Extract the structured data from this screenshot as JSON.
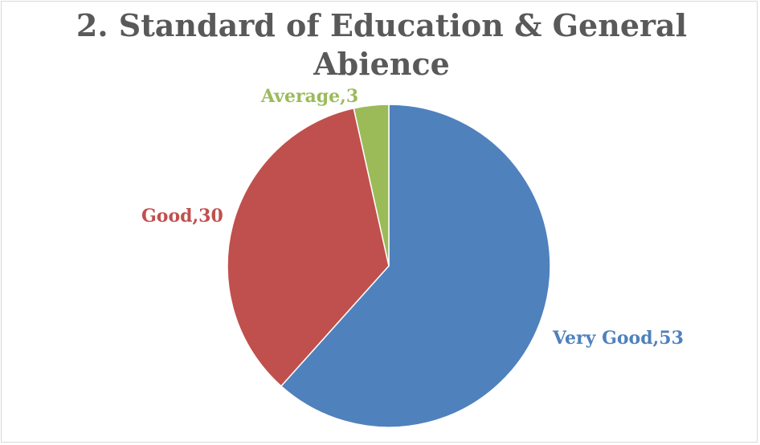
{
  "chart_data": {
    "type": "pie",
    "title_lines": [
      "2. Standard of Education & General",
      "Abience"
    ],
    "slices": [
      {
        "label": "Very Good",
        "value": 53,
        "color": "#4f81bd",
        "data_label": "Very Good,53"
      },
      {
        "label": "Good",
        "value": 30,
        "color": "#c0504d",
        "data_label": "Good,30"
      },
      {
        "label": "Average",
        "value": 3,
        "color": "#9bbb59",
        "data_label": "Average,3"
      }
    ],
    "legend": "none",
    "start_angle_deg": 0,
    "direction": "clockwise"
  }
}
